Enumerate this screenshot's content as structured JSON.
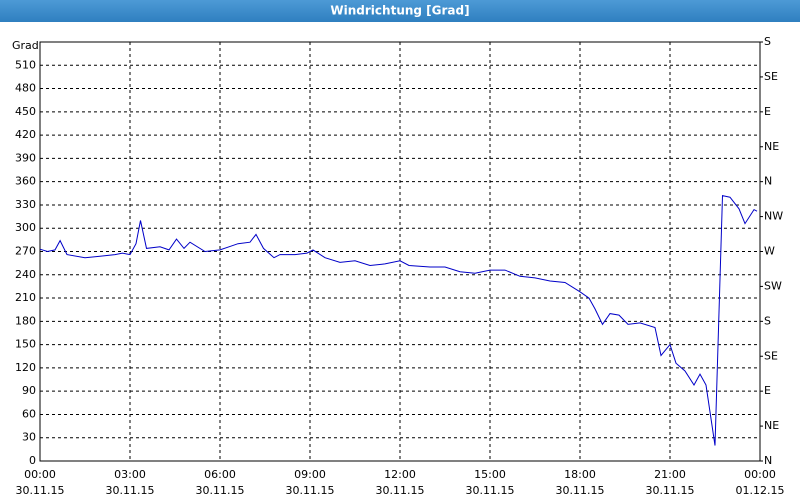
{
  "chart_data": {
    "type": "line",
    "title": "Windrichtung [Grad]",
    "y_label": "Grad",
    "x": [
      0,
      0.25,
      0.5,
      0.67,
      0.9,
      1.5,
      2.0,
      2.5,
      2.75,
      3.0,
      3.2,
      3.35,
      3.55,
      4.0,
      4.3,
      4.55,
      4.8,
      5.0,
      5.5,
      6.0,
      6.3,
      6.6,
      7.0,
      7.2,
      7.45,
      7.8,
      8.0,
      8.5,
      8.9,
      9.1,
      9.5,
      10.0,
      10.5,
      11.0,
      11.5,
      12.0,
      12.3,
      13.0,
      13.5,
      14.0,
      14.5,
      15.0,
      15.5,
      16.0,
      16.5,
      17.0,
      17.5,
      18.0,
      18.3,
      18.5,
      18.75,
      19.0,
      19.3,
      19.6,
      20.0,
      20.5,
      20.7,
      21.0,
      21.2,
      21.5,
      21.8,
      22.0,
      22.2,
      22.5,
      22.75,
      23.0,
      23.3,
      23.5,
      23.8,
      23.9
    ],
    "values": [
      273,
      270,
      272,
      284,
      266,
      262,
      264,
      266,
      268,
      266,
      280,
      310,
      274,
      276,
      272,
      286,
      274,
      282,
      270,
      272,
      276,
      280,
      282,
      292,
      274,
      262,
      266,
      266,
      268,
      272,
      262,
      256,
      258,
      252,
      254,
      258,
      252,
      250,
      250,
      244,
      242,
      246,
      246,
      238,
      236,
      232,
      230,
      218,
      210,
      196,
      176,
      190,
      188,
      176,
      178,
      172,
      136,
      150,
      126,
      116,
      98,
      112,
      98,
      20,
      342,
      340,
      325,
      306,
      324,
      322
    ],
    "color": "#0000c8",
    "xlim": [
      0,
      24
    ],
    "xticks": [
      {
        "value": 0,
        "label": "00:00",
        "date": "30.11.15"
      },
      {
        "value": 3,
        "label": "03:00",
        "date": "30.11.15"
      },
      {
        "value": 6,
        "label": "06:00",
        "date": "30.11.15"
      },
      {
        "value": 9,
        "label": "09:00",
        "date": "30.11.15"
      },
      {
        "value": 12,
        "label": "12:00",
        "date": "30.11.15"
      },
      {
        "value": 15,
        "label": "15:00",
        "date": "30.11.15"
      },
      {
        "value": 18,
        "label": "18:00",
        "date": "30.11.15"
      },
      {
        "value": 21,
        "label": "21:00",
        "date": "30.11.15"
      },
      {
        "value": 24,
        "label": "00:00",
        "date": "01.12.15"
      }
    ],
    "ylim": [
      0,
      540
    ],
    "yticks": [
      0,
      30,
      60,
      90,
      120,
      150,
      180,
      210,
      240,
      270,
      300,
      330,
      360,
      390,
      420,
      450,
      480,
      510
    ],
    "y2lim": [
      0,
      540
    ],
    "y2ticks": [
      {
        "value": 0,
        "label": "N"
      },
      {
        "value": 45,
        "label": "NE"
      },
      {
        "value": 90,
        "label": "E"
      },
      {
        "value": 135,
        "label": "SE"
      },
      {
        "value": 180,
        "label": "S"
      },
      {
        "value": 225,
        "label": "SW"
      },
      {
        "value": 270,
        "label": "W"
      },
      {
        "value": 315,
        "label": "NW"
      },
      {
        "value": 360,
        "label": "N"
      },
      {
        "value": 405,
        "label": "NE"
      },
      {
        "value": 450,
        "label": "E"
      },
      {
        "value": 495,
        "label": "SE"
      },
      {
        "value": 540,
        "label": "S"
      }
    ],
    "grid": true
  }
}
